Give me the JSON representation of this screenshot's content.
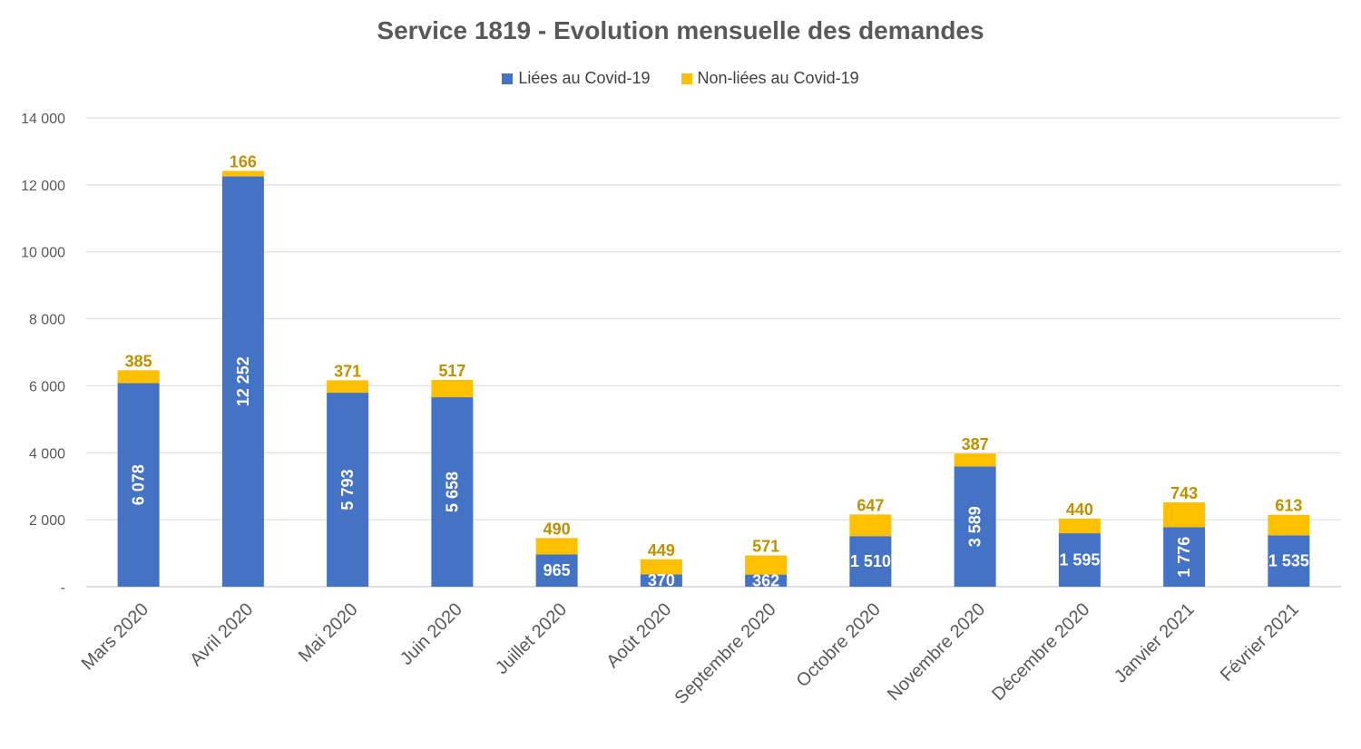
{
  "chart_data": {
    "type": "bar",
    "stacked": true,
    "title": "Service 1819 - Evolution mensuelle des demandes",
    "categories": [
      "Mars 2020",
      "Avril 2020",
      "Mai 2020",
      "Juin 2020",
      "Juillet 2020",
      "Août 2020",
      "Septembre 2020",
      "Octobre 2020",
      "Novembre 2020",
      "Décembre 2020",
      "Janvier 2021",
      "Février 2021"
    ],
    "series": [
      {
        "name": "Liées au Covid-19",
        "color": "#4472C4",
        "values": [
          6078,
          12252,
          5793,
          5658,
          965,
          370,
          362,
          1510,
          3589,
          1595,
          1776,
          1535
        ],
        "labels": [
          "6 078",
          "12 252",
          "5 793",
          "5 658",
          "965",
          "370",
          "362",
          "1 510",
          "3 589",
          "1 595",
          "1 776",
          "1 535"
        ]
      },
      {
        "name": "Non-liées au Covid-19",
        "color": "#FFC000",
        "values": [
          385,
          166,
          371,
          517,
          490,
          449,
          571,
          647,
          387,
          440,
          743,
          613
        ],
        "labels": [
          "385",
          "166",
          "371",
          "517",
          "490",
          "449",
          "571",
          "647",
          "387",
          "440",
          "743",
          "613"
        ]
      }
    ],
    "ylim": [
      0,
      14000
    ],
    "yticks": [
      0,
      2000,
      4000,
      6000,
      8000,
      10000,
      12000,
      14000
    ],
    "ytick_labels": [
      "-",
      "2 000",
      "4 000",
      "6 000",
      "8 000",
      "10 000",
      "12 000",
      "14 000"
    ],
    "grid": true,
    "legend_position": "top",
    "label_color_top": "#BF9000",
    "label_color_inside": "#FFFFFF"
  }
}
